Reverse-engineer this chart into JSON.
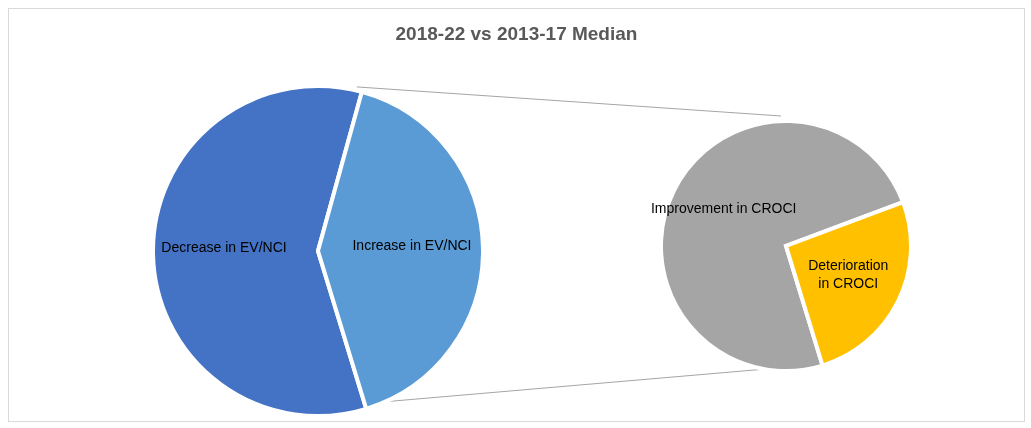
{
  "chart_data": [
    {
      "type": "pie",
      "title": "2018-22 vs 2013-17 Median",
      "categories": [
        "Decrease in EV/NCI",
        "Increase in EV/NCI"
      ],
      "values": [
        59,
        41
      ],
      "colors": [
        "#4472c4",
        "#5b9bd5"
      ],
      "legend": false
    },
    {
      "type": "pie",
      "categories": [
        "Improvement in CROCI",
        "Deterioration in CROCI"
      ],
      "values": [
        74,
        26
      ],
      "colors": [
        "#a5a5a5",
        "#ffc000"
      ],
      "legend": false
    }
  ]
}
